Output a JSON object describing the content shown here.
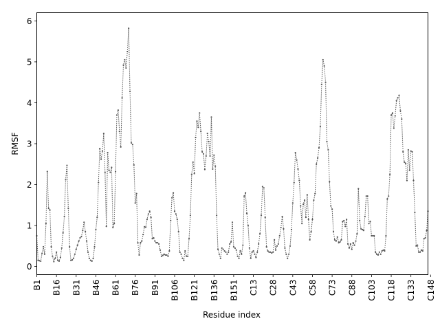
{
  "chart_data": {
    "type": "line",
    "title": "",
    "xlabel": "Residue index",
    "ylabel": "RMSF",
    "ylim": [
      -0.2,
      6.2
    ],
    "yticks": [
      0,
      1,
      2,
      3,
      4,
      5,
      6
    ],
    "xticks": [
      "B1",
      "B16",
      "B31",
      "B46",
      "B61",
      "B76",
      "B91",
      "B106",
      "B121",
      "B136",
      "B151",
      "C13",
      "C28",
      "C43",
      "C58",
      "C73",
      "C88",
      "C103",
      "C118",
      "C133",
      "C148"
    ],
    "grid": false,
    "legend": "none",
    "line_color": "#555555",
    "marker": "dot",
    "linestyle": "dotted",
    "series": [
      {
        "values": [
          0.75,
          0.15,
          0.14,
          0.13,
          0.32,
          0.48,
          0.3,
          1.05,
          2.32,
          1.42,
          1.38,
          0.48,
          0.25,
          0.12,
          0.2,
          0.35,
          0.15,
          0.13,
          0.22,
          0.45,
          0.82,
          1.22,
          2.12,
          2.47,
          1.42,
          0.48,
          0.15,
          0.16,
          0.2,
          0.3,
          0.42,
          0.52,
          0.62,
          0.7,
          0.73,
          0.88,
          1.08,
          0.85,
          0.62,
          0.35,
          0.2,
          0.15,
          0.13,
          0.2,
          0.48,
          0.9,
          1.2,
          2.05,
          2.88,
          2.62,
          2.82,
          3.25,
          2.3,
          0.98,
          2.78,
          2.35,
          2.3,
          2.42,
          0.95,
          1.05,
          2.32,
          3.7,
          3.82,
          3.3,
          2.92,
          4.12,
          4.92,
          5.05,
          4.85,
          5.25,
          5.82,
          4.28,
          3.02,
          2.98,
          2.48,
          1.55,
          1.78,
          0.58,
          0.28,
          0.58,
          0.62,
          0.78,
          0.97,
          0.96,
          1.15,
          1.28,
          1.35,
          1.2,
          0.68,
          0.7,
          0.62,
          0.58,
          0.58,
          0.55,
          0.4,
          0.25,
          0.27,
          0.3,
          0.28,
          0.28,
          0.25,
          0.38,
          1.12,
          1.68,
          1.8,
          1.35,
          1.28,
          1.15,
          0.85,
          0.35,
          0.3,
          0.2,
          0.15,
          0.38,
          0.25,
          0.25,
          0.68,
          1.25,
          2.25,
          2.55,
          2.27,
          3.15,
          3.55,
          3.4,
          3.75,
          3.3,
          2.8,
          2.75,
          2.37,
          2.7,
          3.25,
          3.05,
          2.7,
          3.65,
          2.38,
          2.72,
          2.45,
          1.25,
          0.42,
          0.3,
          0.2,
          0.45,
          0.42,
          0.38,
          0.35,
          0.3,
          0.35,
          0.55,
          0.6,
          1.08,
          0.48,
          0.45,
          0.4,
          0.25,
          0.2,
          0.38,
          0.3,
          0.52,
          1.72,
          1.8,
          1.3,
          1.0,
          0.45,
          0.2,
          0.35,
          0.38,
          0.3,
          0.22,
          0.35,
          0.55,
          0.8,
          1.25,
          1.95,
          1.92,
          1.2,
          0.48,
          0.38,
          0.35,
          0.35,
          0.33,
          0.35,
          0.65,
          0.4,
          0.5,
          0.55,
          0.75,
          0.95,
          1.22,
          0.92,
          0.45,
          0.3,
          0.2,
          0.3,
          0.5,
          0.9,
          1.55,
          2.05,
          2.78,
          2.6,
          2.38,
          2.1,
          1.48,
          1.05,
          1.52,
          1.62,
          1.2,
          1.75,
          1.15,
          0.65,
          0.85,
          1.15,
          1.62,
          1.78,
          2.5,
          2.65,
          2.9,
          3.42,
          4.45,
          5.05,
          4.9,
          4.5,
          3.05,
          2.85,
          2.07,
          1.48,
          1.4,
          0.85,
          0.65,
          0.62,
          0.72,
          0.58,
          0.6,
          0.65,
          1.1,
          1.12,
          0.98,
          1.15,
          0.55,
          0.45,
          0.55,
          0.42,
          0.58,
          0.52,
          0.62,
          0.8,
          1.9,
          1.12,
          0.92,
          0.9,
          0.88,
          1.22,
          1.72,
          1.72,
          1.05,
          1.1,
          0.75,
          0.75,
          0.75,
          0.35,
          0.3,
          0.28,
          0.35,
          0.3,
          0.38,
          0.4,
          0.38,
          0.75,
          1.65,
          1.72,
          2.25,
          3.7,
          3.75,
          3.38,
          3.68,
          4.05,
          4.12,
          4.18,
          3.8,
          3.6,
          2.8,
          2.55,
          2.52,
          2.1,
          2.85,
          2.35,
          2.82,
          2.8,
          2.1,
          1.32,
          0.5,
          0.52,
          0.35,
          0.35,
          0.4,
          0.38,
          0.68,
          0.7,
          0.88,
          1.35
        ]
      }
    ]
  }
}
